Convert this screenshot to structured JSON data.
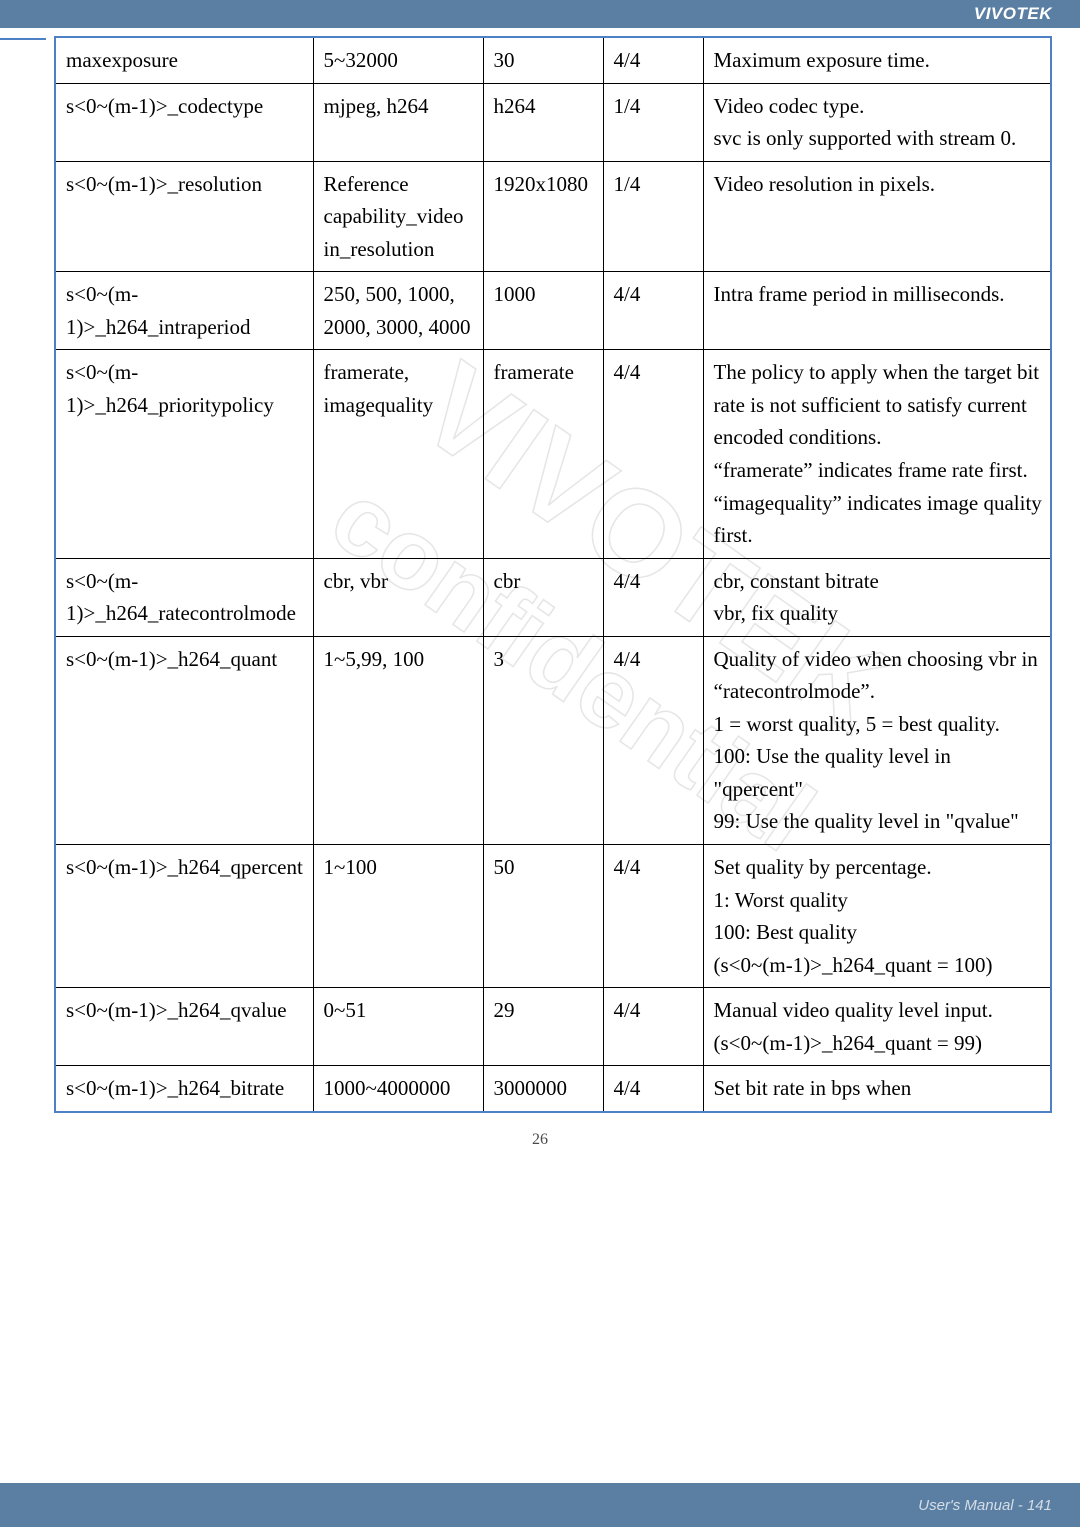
{
  "brand": "VIVOTEK",
  "page_number": "26",
  "footer_text": "User's Manual - 141",
  "watermark_text": "VIVOTEK confidential",
  "table": {
    "columns": 5,
    "rows": [
      {
        "c1": "maxexposure",
        "c2": "5~32000",
        "c3": "30",
        "c4": "4/4",
        "c5": "Maximum exposure time."
      },
      {
        "c1": "s<0~(m-1)>_codectype",
        "c2": "mjpeg, h264",
        "c3": "h264",
        "c4": "1/4",
        "c5": "Video codec type.\nsvc is only supported with stream 0."
      },
      {
        "c1": "s<0~(m-1)>_resolution",
        "c2": "Reference capability_video in_resolution",
        "c3": "1920x1080",
        "c4": "1/4",
        "c5": "Video resolution in pixels."
      },
      {
        "c1": "s<0~(m-1)>_h264_intraperiod",
        "c2": "250, 500, 1000, 2000, 3000, 4000",
        "c3": "1000",
        "c4": "4/4",
        "c5": "Intra frame period in milliseconds."
      },
      {
        "c1": "s<0~(m-1)>_h264_prioritypolicy",
        "c2": "framerate, imagequality",
        "c3": "framerate",
        "c4": "4/4",
        "c5": "The policy to apply when the target bit rate is not sufficient to satisfy current encoded conditions.\n“framerate” indicates frame rate first.\n“imagequality” indicates image quality first."
      },
      {
        "c1": "s<0~(m-1)>_h264_ratecontrolmode",
        "c2": "cbr, vbr",
        "c3": "cbr",
        "c4": "4/4",
        "c5": "cbr, constant bitrate\nvbr, fix quality"
      },
      {
        "c1": "s<0~(m-1)>_h264_quant",
        "c2": "1~5,99, 100",
        "c3": "3",
        "c4": "4/4",
        "c5": "Quality of video when choosing vbr in “ratecontrolmode”.\n1 = worst quality, 5 = best quality.\n100: Use the quality level in \"qpercent\"\n99: Use the quality level in \"qvalue\""
      },
      {
        "c1": "s<0~(m-1)>_h264_qpercent",
        "c2": "1~100",
        "c3": "50",
        "c4": "4/4",
        "c5": "Set quality by percentage.\n1: Worst quality\n100: Best quality\n(s<0~(m-1)>_h264_quant = 100)"
      },
      {
        "c1": "s<0~(m-1)>_h264_qvalue",
        "c2": "0~51",
        "c3": "29",
        "c4": "4/4",
        "c5": "Manual video quality level input.\n(s<0~(m-1)>_h264_quant = 99)"
      },
      {
        "c1": "s<0~(m-1)>_h264_bitrate",
        "c2": "1000~4000000",
        "c3": "3000000",
        "c4": "4/4",
        "c5": "Set bit rate in bps when"
      }
    ]
  }
}
